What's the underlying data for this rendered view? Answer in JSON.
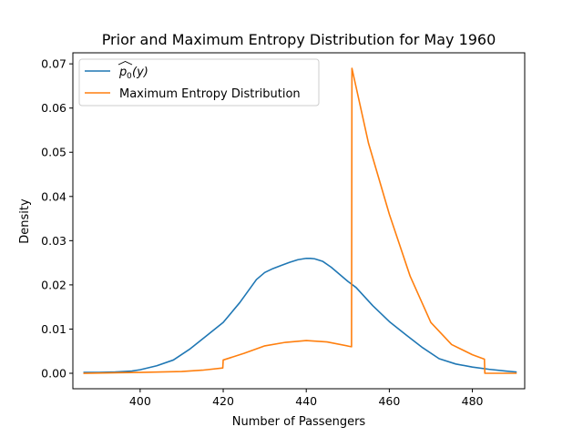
{
  "chart_data": {
    "type": "line",
    "title": "Prior and Maximum Entropy Distribution for May 1960",
    "xlabel": "Number of Passengers",
    "ylabel": "Density",
    "xlim": [
      383.8,
      492.6
    ],
    "ylim": [
      -0.0035,
      0.0725
    ],
    "xticks": [
      400,
      420,
      440,
      460,
      480
    ],
    "yticks": [
      0.0,
      0.01,
      0.02,
      0.03,
      0.04,
      0.05,
      0.06,
      0.07
    ],
    "xtick_labels": [
      "400",
      "420",
      "440",
      "460",
      "480"
    ],
    "ytick_labels": [
      "0.00",
      "0.01",
      "0.02",
      "0.03",
      "0.04",
      "0.05",
      "0.06",
      "0.07"
    ],
    "grid": false,
    "legend_position": "top-left",
    "series": [
      {
        "name": "p0(y) hat",
        "color": "#1f77b4",
        "x": [
          386.5,
          390,
          394,
          398,
          400,
          404,
          408,
          412,
          416,
          420,
          424,
          428,
          430,
          432,
          434,
          436,
          438,
          440,
          441,
          442,
          444,
          446,
          448,
          450,
          452,
          456,
          460,
          464,
          468,
          472,
          476,
          480,
          484,
          488,
          490.5
        ],
        "y": [
          0.0002,
          0.0002,
          0.0003,
          0.0005,
          0.0008,
          0.0017,
          0.003,
          0.0055,
          0.0085,
          0.0115,
          0.016,
          0.0212,
          0.0228,
          0.0237,
          0.0244,
          0.0251,
          0.0257,
          0.026,
          0.026,
          0.0259,
          0.0253,
          0.024,
          0.0224,
          0.0208,
          0.0194,
          0.0153,
          0.0117,
          0.0087,
          0.0058,
          0.0033,
          0.0021,
          0.0014,
          0.0009,
          0.0005,
          0.0003
        ]
      },
      {
        "name": "Maximum Entropy Distribution",
        "color": "#ff7f0e",
        "x": [
          386.5,
          400,
          410,
          415,
          419.9,
          420,
          425,
          430,
          435,
          440,
          445,
          450.9,
          451,
          455,
          460,
          465,
          470,
          475,
          480,
          482.9,
          483,
          490.5
        ],
        "y": [
          0.0,
          0.0002,
          0.0004,
          0.0007,
          0.0012,
          0.003,
          0.0045,
          0.0062,
          0.007,
          0.0074,
          0.0071,
          0.006,
          0.069,
          0.052,
          0.036,
          0.022,
          0.0115,
          0.0065,
          0.0042,
          0.0032,
          0.0,
          0.0
        ]
      }
    ]
  }
}
